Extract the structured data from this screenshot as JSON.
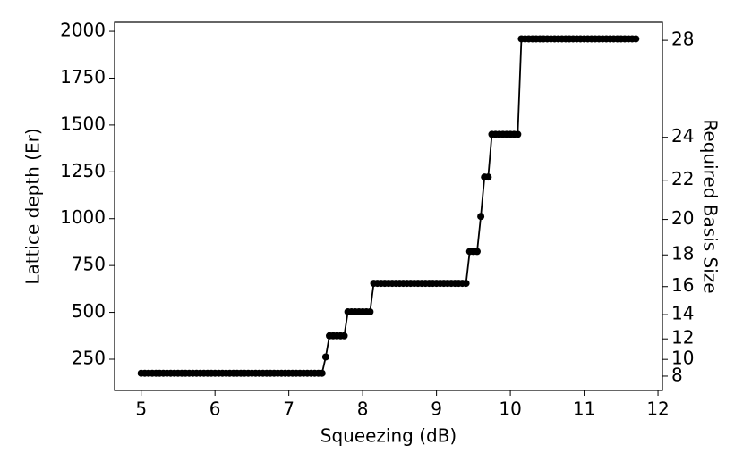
{
  "chart_data": {
    "type": "line",
    "xlabel": "Squeezing (dB)",
    "ylabel": "Lattice depth (Er)",
    "y2label": "Required Basis Size",
    "color": "#000000",
    "markers": true,
    "xlim": [
      4.64,
      12.06
    ],
    "ylim": [
      83,
      2048
    ],
    "y2lim": [
      5.77,
      28.68
    ],
    "y2scale": "square",
    "xticks": [
      5,
      6,
      7,
      8,
      9,
      10,
      11,
      12
    ],
    "yticks": [
      250,
      500,
      750,
      1000,
      1250,
      1500,
      1750,
      2000
    ],
    "y2ticks": [
      8,
      10,
      12,
      14,
      16,
      18,
      20,
      22,
      24,
      28
    ],
    "x": [
      5,
      5.05,
      5.1,
      5.15,
      5.2,
      5.25,
      5.3,
      5.35,
      5.4,
      5.45,
      5.5,
      5.55,
      5.6,
      5.65,
      5.7,
      5.75,
      5.8,
      5.85,
      5.9,
      5.95,
      6,
      6.05,
      6.1,
      6.15,
      6.2,
      6.25,
      6.3,
      6.35,
      6.4,
      6.45,
      6.5,
      6.55,
      6.6,
      6.65,
      6.7,
      6.75,
      6.8,
      6.85,
      6.9,
      6.95,
      7,
      7.05,
      7.1,
      7.15,
      7.2,
      7.25,
      7.3,
      7.35,
      7.4,
      7.45,
      7.5,
      7.55,
      7.6,
      7.65,
      7.7,
      7.75,
      7.8,
      7.85,
      7.9,
      7.95,
      8,
      8.05,
      8.1,
      8.15,
      8.2,
      8.25,
      8.3,
      8.35,
      8.4,
      8.45,
      8.5,
      8.55,
      8.6,
      8.65,
      8.7,
      8.75,
      8.8,
      8.85,
      8.9,
      8.95,
      9,
      9.05,
      9.1,
      9.15,
      9.2,
      9.25,
      9.3,
      9.35,
      9.4,
      9.45,
      9.5,
      9.55,
      9.6,
      9.65,
      9.7,
      9.75,
      9.8,
      9.85,
      9.9,
      9.95,
      10,
      10.05,
      10.1,
      10.15,
      10.2,
      10.25,
      10.3,
      10.35,
      10.4,
      10.45,
      10.5,
      10.55,
      10.6,
      10.65,
      10.7,
      10.75,
      10.8,
      10.85,
      10.9,
      10.95,
      11,
      11.05,
      11.1,
      11.15,
      11.2,
      11.25,
      11.3,
      11.35,
      11.4,
      11.45,
      11.5,
      11.55,
      11.6,
      11.65,
      11.7
    ],
    "values": [
      175,
      175,
      175,
      175,
      175,
      175,
      175,
      175,
      175,
      175,
      175,
      175,
      175,
      175,
      175,
      175,
      175,
      175,
      175,
      175,
      175,
      175,
      175,
      175,
      175,
      175,
      175,
      175,
      175,
      175,
      175,
      175,
      175,
      175,
      175,
      175,
      175,
      175,
      175,
      175,
      175,
      175,
      175,
      175,
      175,
      175,
      175,
      175,
      175,
      175,
      262,
      375,
      375,
      375,
      375,
      375,
      503,
      503,
      503,
      503,
      503,
      503,
      503,
      655,
      655,
      655,
      655,
      655,
      655,
      655,
      655,
      655,
      655,
      655,
      655,
      655,
      655,
      655,
      655,
      655,
      655,
      655,
      655,
      655,
      655,
      655,
      655,
      655,
      655,
      825,
      825,
      825,
      1012,
      1222,
      1222,
      1450,
      1450,
      1450,
      1450,
      1450,
      1450,
      1450,
      1450,
      1960,
      1960,
      1960,
      1960,
      1960,
      1960,
      1960,
      1960,
      1960,
      1960,
      1960,
      1960,
      1960,
      1960,
      1960,
      1960,
      1960,
      1960,
      1960,
      1960,
      1960,
      1960,
      1960,
      1960,
      1960,
      1960,
      1960,
      1960,
      1960,
      1960,
      1960,
      1960
    ]
  }
}
